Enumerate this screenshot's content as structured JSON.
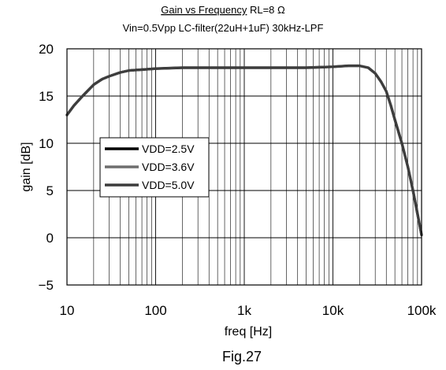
{
  "chart_data": {
    "type": "line",
    "title": "Gain vs Frequency",
    "title_suffix": " RL=8 Ω",
    "subtitle": "Vin=0.5Vpp LC-filter(22uH+1uF) 30kHz-LPF",
    "xlabel": "freq [Hz]",
    "ylabel": "gain [dB]",
    "x_scale": "log",
    "xlim": [
      10,
      100000
    ],
    "ylim": [
      -5,
      20
    ],
    "grid": true,
    "x_ticks": [
      {
        "value": 10,
        "label": "10"
      },
      {
        "value": 100,
        "label": "100"
      },
      {
        "value": 1000,
        "label": "1k"
      },
      {
        "value": 10000,
        "label": "10k"
      },
      {
        "value": 100000,
        "label": "100k"
      }
    ],
    "y_ticks": [
      {
        "value": 20,
        "label": "20"
      },
      {
        "value": 15,
        "label": "15"
      },
      {
        "value": 10,
        "label": "10"
      },
      {
        "value": 5,
        "label": "5"
      },
      {
        "value": 0,
        "label": "0"
      },
      {
        "value": -5,
        "label": "−5"
      }
    ],
    "legend_position": "left-middle",
    "series": [
      {
        "name": "VDD=2.5V",
        "color": "#000000",
        "x": [
          10,
          12,
          15,
          20,
          25,
          30,
          40,
          50,
          70,
          100,
          200,
          500,
          1000,
          2000,
          5000,
          10000,
          15000,
          20000,
          25000,
          30000,
          35000,
          40000,
          45000,
          50000,
          60000,
          70000,
          80000,
          90000,
          100000
        ],
        "y": [
          13,
          14,
          15,
          16.2,
          16.8,
          17.1,
          17.5,
          17.7,
          17.8,
          17.9,
          18,
          18,
          18,
          18,
          18,
          18.1,
          18.2,
          18.2,
          18,
          17.4,
          16.5,
          15.5,
          14,
          12.5,
          10,
          7.5,
          5,
          2.5,
          0.3
        ]
      },
      {
        "name": "VDD=3.6V",
        "color": "#6e6e6e",
        "x": [
          10,
          12,
          15,
          20,
          25,
          30,
          40,
          50,
          70,
          100,
          200,
          500,
          1000,
          2000,
          5000,
          10000,
          15000,
          20000,
          25000,
          30000,
          35000,
          40000,
          45000,
          50000,
          60000,
          70000,
          80000,
          90000,
          100000
        ],
        "y": [
          13,
          14,
          15,
          16.2,
          16.8,
          17.1,
          17.5,
          17.7,
          17.8,
          17.9,
          18,
          18,
          18,
          18,
          18,
          18.1,
          18.2,
          18.2,
          18,
          17.4,
          16.5,
          15.5,
          14,
          12.5,
          10,
          7.5,
          5,
          2.5,
          0.3
        ]
      },
      {
        "name": "VDD=5.0V",
        "color": "#3c3c3c",
        "x": [
          10,
          12,
          15,
          20,
          25,
          30,
          40,
          50,
          70,
          100,
          200,
          500,
          1000,
          2000,
          5000,
          10000,
          15000,
          20000,
          25000,
          30000,
          35000,
          40000,
          45000,
          50000,
          60000,
          70000,
          80000,
          90000,
          100000
        ],
        "y": [
          13,
          14,
          15,
          16.2,
          16.8,
          17.1,
          17.5,
          17.7,
          17.8,
          17.9,
          18,
          18,
          18,
          18,
          18,
          18.1,
          18.2,
          18.2,
          18,
          17.4,
          16.5,
          15.5,
          14,
          12.5,
          10,
          7.5,
          5,
          2.5,
          0.3
        ]
      }
    ]
  },
  "figure_label": "Fig.27"
}
